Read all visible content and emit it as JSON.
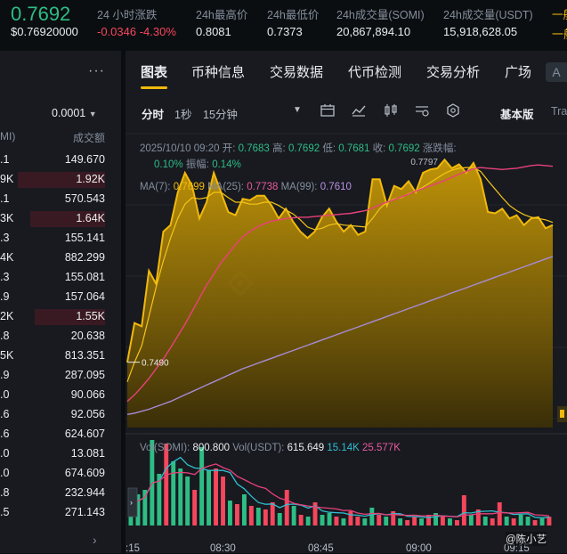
{
  "header": {
    "price": "0.7692",
    "price_usd": "$0.76920000",
    "stats": [
      {
        "label": "24 小时涨跌",
        "value": "-0.0346 -4.30%",
        "tone": "neg"
      },
      {
        "label": "24h最高价",
        "value": "0.8081",
        "tone": ""
      },
      {
        "label": "24h最低价",
        "value": "0.7373",
        "tone": ""
      },
      {
        "label": "24h成交量(SOMI)",
        "value": "20,867,894.10",
        "tone": ""
      },
      {
        "label": "24h成交量(USDT)",
        "value": "15,918,628.05",
        "tone": ""
      },
      {
        "label": "一般",
        "value": "一般",
        "tone": "gold"
      }
    ]
  },
  "left_panel": {
    "precision": "0.0001",
    "col_left": "MI)",
    "col_right": "成交额",
    "rows": [
      {
        "p": ".1",
        "v": "149.670",
        "bar": 0
      },
      {
        "p": "9K",
        "v": "1.92K",
        "bar": 0.72
      },
      {
        "p": ".1",
        "v": "570.543",
        "bar": 0
      },
      {
        "p": "3K",
        "v": "1.64K",
        "bar": 0.62
      },
      {
        "p": ".3",
        "v": "155.141",
        "bar": 0
      },
      {
        "p": "4K",
        "v": "882.299",
        "bar": 0
      },
      {
        "p": ".3",
        "v": "155.081",
        "bar": 0
      },
      {
        "p": ".9",
        "v": "157.064",
        "bar": 0
      },
      {
        "p": "2K",
        "v": "1.55K",
        "bar": 0.58
      },
      {
        "p": ".8",
        "v": "20.638",
        "bar": 0
      },
      {
        "p": "5K",
        "v": "813.351",
        "bar": 0
      },
      {
        "p": ".9",
        "v": "287.095",
        "bar": 0
      },
      {
        "p": ".0",
        "v": "90.066",
        "bar": 0
      },
      {
        "p": ".6",
        "v": "92.056",
        "bar": 0
      },
      {
        "p": ".6",
        "v": "624.607",
        "bar": 0
      },
      {
        "p": ".0",
        "v": "13.081",
        "bar": 0
      },
      {
        "p": ".0",
        "v": "674.609",
        "bar": 0
      },
      {
        "p": ".8",
        "v": "232.944",
        "bar": 0
      },
      {
        "p": ".5",
        "v": "271.143",
        "bar": 0
      }
    ]
  },
  "tabs": [
    "图表",
    "币种信息",
    "交易数据",
    "代币检测",
    "交易分析",
    "广场"
  ],
  "toolbar": {
    "intervals": [
      "分时",
      "1秒",
      "15分钟"
    ],
    "mode": "基本版",
    "mode2": "Tra"
  },
  "ohlc": {
    "time": "2025/10/10 09:20",
    "open_label": "开:",
    "open": "0.7683",
    "high_label": "高:",
    "high": "0.7692",
    "low_label": "低:",
    "low": "0.7681",
    "close_label": "收:",
    "close": "0.7692",
    "change_label": "涨跌幅:",
    "change": "0.10%",
    "amp_label": "振幅:",
    "amp": "0.14%"
  },
  "ma": {
    "ma7_label": "MA(7):",
    "ma7": "0.7699",
    "ma25_label": "MA(25):",
    "ma25": "0.7738",
    "ma99_label": "MA(99):",
    "ma99": "0.7610"
  },
  "vol": {
    "label1": "Vol(SOMI):",
    "v1": "800.800",
    "label2": "Vol(USDT):",
    "v2": "615.649",
    "v3": "15.14K",
    "v4": "25.577K"
  },
  "colors": {
    "up": "#2ebd85",
    "down": "#f6465d",
    "accent": "#f0b90b",
    "ma25": "#e8417a",
    "ma99": "#a78bd6"
  },
  "chart_data": {
    "type": "area",
    "x_ticks": [
      ":15",
      "08:30",
      "08:45",
      "09:00",
      "09:15"
    ],
    "price_series": [
      0.75,
      0.756,
      0.7555,
      0.764,
      0.762,
      0.77,
      0.771,
      0.776,
      0.779,
      0.777,
      0.772,
      0.7745,
      0.779,
      0.776,
      0.773,
      0.7725,
      0.775,
      0.7748,
      0.7755,
      0.7755,
      0.774,
      0.772,
      0.7735,
      0.7715,
      0.77,
      0.769,
      0.77,
      0.7722,
      0.7735,
      0.7715,
      0.77,
      0.771,
      0.7695,
      0.77,
      0.778,
      0.778,
      0.774,
      0.777,
      0.7765,
      0.7777,
      0.776,
      0.779,
      0.7795,
      0.7797,
      0.781,
      0.7797,
      0.7803,
      0.779,
      0.7805,
      0.778,
      0.773,
      0.7728,
      0.7735,
      0.772,
      0.7725,
      0.771,
      0.772,
      0.7722,
      0.7705,
      0.771
    ],
    "ma7_series": [
      0.747,
      0.75,
      0.7525,
      0.757,
      0.7615,
      0.7655,
      0.769,
      0.772,
      0.7742,
      0.7752,
      0.775,
      0.7752,
      0.776,
      0.776,
      0.7752,
      0.7745,
      0.7745,
      0.7742,
      0.7742,
      0.7745,
      0.7745,
      0.774,
      0.7733,
      0.7727,
      0.7718,
      0.7707,
      0.7703,
      0.7705,
      0.771,
      0.7712,
      0.771,
      0.7709,
      0.7708,
      0.7707,
      0.772,
      0.7735,
      0.7745,
      0.775,
      0.7752,
      0.7758,
      0.7762,
      0.7768,
      0.7775,
      0.7782,
      0.7789,
      0.7794,
      0.7797,
      0.7798,
      0.7798,
      0.7792,
      0.7778,
      0.7765,
      0.7752,
      0.774,
      0.7732,
      0.7726,
      0.7722,
      0.772,
      0.7718,
      0.7714
    ],
    "ma25_series": [
      0.744,
      0.745,
      0.7462,
      0.7475,
      0.749,
      0.7505,
      0.7522,
      0.754,
      0.7558,
      0.7578,
      0.7598,
      0.7618,
      0.7635,
      0.7652,
      0.7666,
      0.768,
      0.7692,
      0.77,
      0.7707,
      0.7712,
      0.7716,
      0.7718,
      0.772,
      0.7721,
      0.7722,
      0.7722,
      0.7723,
      0.7724,
      0.7725,
      0.7726,
      0.7727,
      0.7728,
      0.773,
      0.7732,
      0.7736,
      0.7741,
      0.7745,
      0.7749,
      0.7753,
      0.7757,
      0.7762,
      0.7766,
      0.777,
      0.7774,
      0.7778,
      0.7783,
      0.7788,
      0.7792,
      0.7796,
      0.7798,
      0.7797,
      0.7796,
      0.7795,
      0.7796,
      0.7797,
      0.7799,
      0.7801,
      0.7802,
      0.7801,
      0.78
    ],
    "ma99_series": [
      0.742,
      0.7422,
      0.7425,
      0.7428,
      0.7432,
      0.7436,
      0.744,
      0.7445,
      0.745,
      0.7455,
      0.746,
      0.7465,
      0.747,
      0.7475,
      0.748,
      0.7485,
      0.749,
      0.7494,
      0.7498,
      0.7502,
      0.7506,
      0.751,
      0.7514,
      0.7518,
      0.7522,
      0.7526,
      0.753,
      0.7534,
      0.7538,
      0.7542,
      0.7546,
      0.755,
      0.7554,
      0.7558,
      0.7562,
      0.7566,
      0.757,
      0.7574,
      0.7578,
      0.7582,
      0.7586,
      0.759,
      0.7594,
      0.7598,
      0.7602,
      0.7606,
      0.761,
      0.7614,
      0.7618,
      0.7622,
      0.7626,
      0.763,
      0.7634,
      0.7638,
      0.7642,
      0.7646,
      0.765,
      0.7654,
      0.7658,
      0.7662
    ],
    "y_range": [
      0.74,
      0.785
    ],
    "annotations": [
      {
        "label": "0.7797",
        "index": 43
      },
      {
        "label": "0.7490",
        "index": 0
      }
    ],
    "volume_series": [
      {
        "v": 20,
        "up": true
      },
      {
        "v": 35,
        "up": true
      },
      {
        "v": 40,
        "up": true
      },
      {
        "v": 96,
        "up": true
      },
      {
        "v": 58,
        "up": true
      },
      {
        "v": 92,
        "up": false
      },
      {
        "v": 72,
        "up": true
      },
      {
        "v": 64,
        "up": true
      },
      {
        "v": 55,
        "up": true
      },
      {
        "v": 40,
        "up": false
      },
      {
        "v": 88,
        "up": true
      },
      {
        "v": 62,
        "up": true
      },
      {
        "v": 64,
        "up": false
      },
      {
        "v": 55,
        "up": false
      },
      {
        "v": 28,
        "up": true
      },
      {
        "v": 24,
        "up": false
      },
      {
        "v": 35,
        "up": true
      },
      {
        "v": 22,
        "up": false
      },
      {
        "v": 20,
        "up": true
      },
      {
        "v": 18,
        "up": false
      },
      {
        "v": 26,
        "up": false
      },
      {
        "v": 14,
        "up": true
      },
      {
        "v": 40,
        "up": false
      },
      {
        "v": 22,
        "up": true
      },
      {
        "v": 12,
        "up": false
      },
      {
        "v": 10,
        "up": true
      },
      {
        "v": 26,
        "up": false
      },
      {
        "v": 12,
        "up": true
      },
      {
        "v": 14,
        "up": true
      },
      {
        "v": 10,
        "up": false
      },
      {
        "v": 8,
        "up": true
      },
      {
        "v": 16,
        "up": false
      },
      {
        "v": 10,
        "up": false
      },
      {
        "v": 8,
        "up": true
      },
      {
        "v": 20,
        "up": true
      },
      {
        "v": 12,
        "up": false
      },
      {
        "v": 10,
        "up": true
      },
      {
        "v": 16,
        "up": false
      },
      {
        "v": 8,
        "up": true
      },
      {
        "v": 6,
        "up": false
      },
      {
        "v": 10,
        "up": false
      },
      {
        "v": 8,
        "up": true
      },
      {
        "v": 12,
        "up": false
      },
      {
        "v": 14,
        "up": true
      },
      {
        "v": 10,
        "up": false
      },
      {
        "v": 8,
        "up": true
      },
      {
        "v": 6,
        "up": false
      },
      {
        "v": 34,
        "up": false
      },
      {
        "v": 12,
        "up": true
      },
      {
        "v": 18,
        "up": false
      },
      {
        "v": 10,
        "up": true
      },
      {
        "v": 8,
        "up": false
      },
      {
        "v": 26,
        "up": false
      },
      {
        "v": 10,
        "up": true
      },
      {
        "v": 8,
        "up": false
      },
      {
        "v": 12,
        "up": true
      },
      {
        "v": 10,
        "up": true
      },
      {
        "v": 6,
        "up": false
      },
      {
        "v": 8,
        "up": true
      },
      {
        "v": 10,
        "up": false
      }
    ]
  },
  "footer_tag": "@陈小艺"
}
